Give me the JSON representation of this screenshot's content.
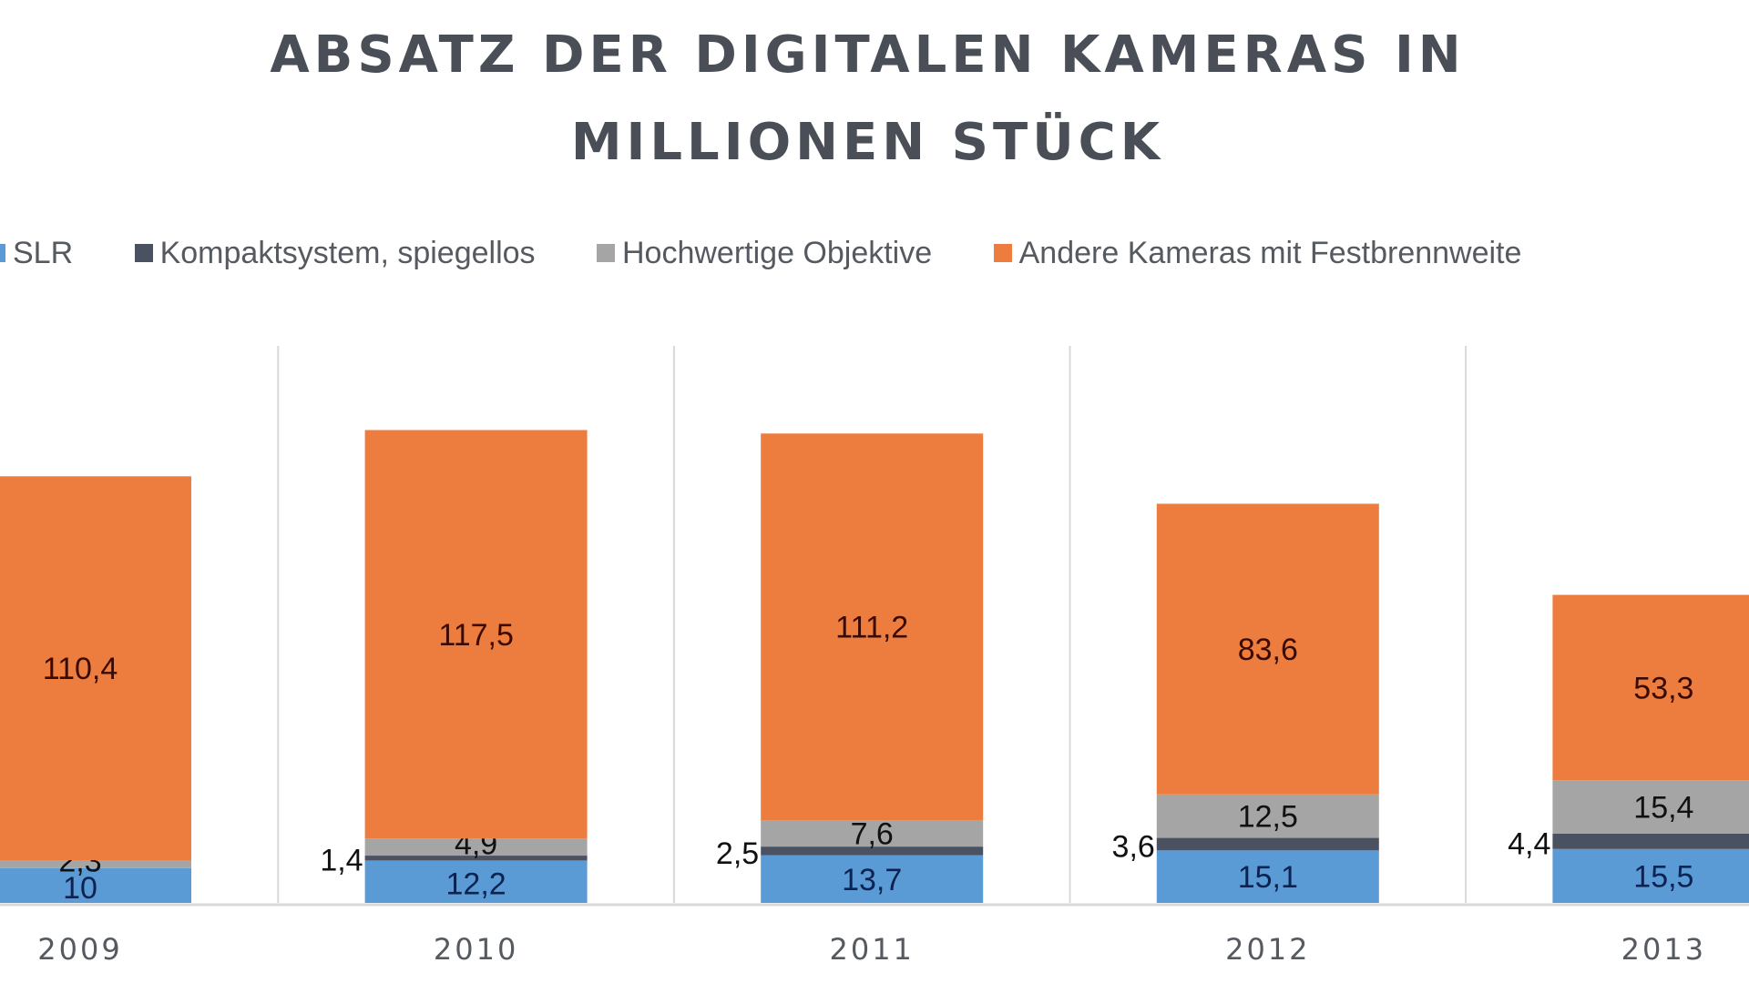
{
  "chart_data": {
    "type": "bar",
    "stacked": true,
    "title": "ABSATZ DER DIGITALEN KAMERAS IN MILLIONEN STÜCK",
    "title_lines": [
      "ABSATZ DER DIGITALEN KAMERAS IN",
      "MILLIONEN STÜCK"
    ],
    "xlabel": "",
    "ylabel": "",
    "categories": [
      "2009",
      "2010",
      "2011",
      "2012",
      "2013"
    ],
    "series": [
      {
        "name": "SLR",
        "color": "#5b9bd5",
        "label_color": "#0b2350",
        "values": [
          10,
          12.2,
          13.7,
          15.1,
          15.5
        ],
        "labels": [
          "10",
          "12,2",
          "13,7",
          "15,1",
          "15,5"
        ]
      },
      {
        "name": "Kompaktsystem, spiegellos",
        "color": "#4a5160",
        "label_color": "#111111",
        "values": [
          null,
          1.4,
          2.5,
          3.6,
          4.4
        ],
        "labels": [
          "",
          "1,4",
          "2,5",
          "3,6",
          "4,4"
        ]
      },
      {
        "name": "Hochwertige Objektive",
        "color": "#a5a5a5",
        "label_color": "#111111",
        "values": [
          2.3,
          4.9,
          7.6,
          12.5,
          15.4
        ],
        "labels": [
          "2,3",
          "4,9",
          "7,6",
          "12,5",
          "15,4"
        ]
      },
      {
        "name": "Andere Kameras mit Festbrennweite",
        "color": "#ed7d3f",
        "label_color": "#3a0a00",
        "values": [
          110.4,
          117.5,
          111.2,
          83.6,
          53.3
        ],
        "labels": [
          "110,4",
          "117,5",
          "111,2",
          "83,6",
          "53,3"
        ]
      }
    ],
    "legend_position": "top",
    "grid": "vertical category separators",
    "ylim": [
      0,
      160
    ]
  }
}
